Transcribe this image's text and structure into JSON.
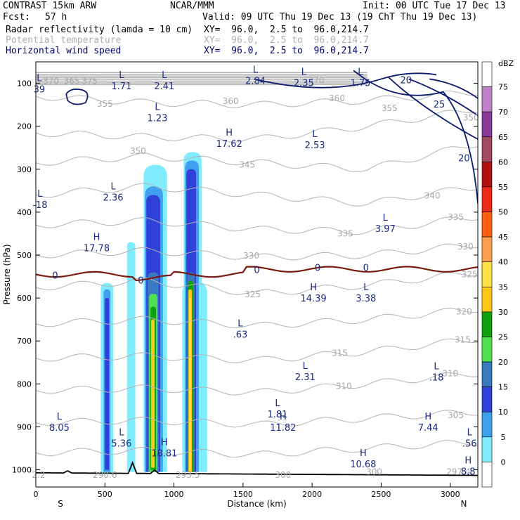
{
  "header": {
    "model": "CONTRAST 15km ARW",
    "center": "NCAR/MMM",
    "init": "Init: 00 UTC Tue 17 Dec 13",
    "fcst_label": "Fcst:",
    "fcst_value": "57 h",
    "valid": "Valid: 09 UTC Thu 19 Dec 13 (19 ChT Thu 19 Dec 13)",
    "fields": [
      {
        "name": "Radar reflectivity (lamda = 10 cm)",
        "xy": "XY=  96.0,  2.5 to  96.0,214.7"
      },
      {
        "name": "Potential temperature",
        "xy": "XY=  96.0,  2.5 to  96.0,214.7"
      },
      {
        "name": "Horizontal wind speed",
        "xy": "XY=  96.0,  2.5 to  96.0,214.7"
      }
    ]
  },
  "colors": {
    "wind": "#0c1a6e",
    "theta": "#b4b4b4",
    "freezing": "#7a1a10",
    "terrain": "#000000"
  },
  "chart_data": {
    "type": "cross-section",
    "xlabel": "Distance (km)",
    "ylabel": "Pressure (hPa)",
    "x_ticks": [
      0,
      500,
      1000,
      1500,
      2000,
      2500,
      3000
    ],
    "x_lim": [
      0,
      3200
    ],
    "y_ticks": [
      100,
      200,
      300,
      400,
      500,
      600,
      700,
      800,
      900,
      1000
    ],
    "y_lim": [
      50,
      1040
    ],
    "left_end": "S",
    "right_end": "N",
    "colorbar": {
      "title": "dBZ",
      "levels": [
        75,
        70,
        65,
        60,
        55,
        50,
        45,
        40,
        35,
        30,
        25,
        20,
        15,
        10,
        5,
        0
      ],
      "colors": [
        "#ffffff",
        "#c080c8",
        "#8a3a9a",
        "#a04a60",
        "#b01010",
        "#ef2a1a",
        "#ff6010",
        "#ffa050",
        "#ffe040",
        "#ffc818",
        "#10a010",
        "#50e050",
        "#3a78c0",
        "#3040d8",
        "#40a0f0",
        "#80ecff",
        "#ffffff"
      ]
    },
    "theta_labels": [
      {
        "text": "370",
        "x": 110,
        "p": 95
      },
      {
        "text": "365",
        "x": 260,
        "p": 95
      },
      {
        "text": "375",
        "x": 390,
        "p": 95
      },
      {
        "text": "370",
        "x": 2030,
        "p": 93
      },
      {
        "text": "355",
        "x": 500,
        "p": 148
      },
      {
        "text": "360",
        "x": 1410,
        "p": 142
      },
      {
        "text": "360",
        "x": 2180,
        "p": 135
      },
      {
        "text": "355",
        "x": 2560,
        "p": 158
      },
      {
        "text": "350",
        "x": 3150,
        "p": 180
      },
      {
        "text": "350",
        "x": 740,
        "p": 258
      },
      {
        "text": "345",
        "x": 1530,
        "p": 290
      },
      {
        "text": "340",
        "x": 2870,
        "p": 362
      },
      {
        "text": "335",
        "x": 3040,
        "p": 412
      },
      {
        "text": "335",
        "x": 2240,
        "p": 450
      },
      {
        "text": "330",
        "x": 1560,
        "p": 502
      },
      {
        "text": "330",
        "x": 3110,
        "p": 480
      },
      {
        "text": "325",
        "x": 1570,
        "p": 592
      },
      {
        "text": "325",
        "x": 3140,
        "p": 545
      },
      {
        "text": "320",
        "x": 3100,
        "p": 632
      },
      {
        "text": "315",
        "x": 2200,
        "p": 728
      },
      {
        "text": "315",
        "x": 3090,
        "p": 697
      },
      {
        "text": "310",
        "x": 2230,
        "p": 805
      },
      {
        "text": "310",
        "x": 3000,
        "p": 776
      },
      {
        "text": "305",
        "x": 3040,
        "p": 873
      },
      {
        "text": "300",
        "x": 1790,
        "p": 1012
      },
      {
        "text": "300",
        "x": 2450,
        "p": 1005
      },
      {
        "text": "290.6",
        "x": 500,
        "p": 1012
      },
      {
        "text": "293.5",
        "x": 1100,
        "p": 1012
      },
      {
        "text": "297.4",
        "x": 3060,
        "p": 1005
      },
      {
        "text": "2.2",
        "x": 20,
        "p": 1012
      }
    ],
    "wind_labels": [
      {
        "text": "20",
        "x": 2680,
        "p": 93
      },
      {
        "text": "25",
        "x": 2920,
        "p": 150
      },
      {
        "text": "20",
        "x": 3100,
        "p": 275
      }
    ],
    "extrema": [
      {
        "kind": "L",
        "value": "1.71",
        "x": 620,
        "p": 88
      },
      {
        "kind": "L",
        "value": "2.41",
        "x": 930,
        "p": 88
      },
      {
        "kind": "L",
        "value": "2.84",
        "x": 1590,
        "p": 75
      },
      {
        "kind": "L",
        "value": "2.35",
        "x": 1940,
        "p": 80
      },
      {
        "kind": "L",
        "value": "1.75",
        "x": 2350,
        "p": 80
      },
      {
        "kind": "L",
        "value": "39",
        "x": 25,
        "p": 95
      },
      {
        "kind": "L",
        "value": "1.23",
        "x": 880,
        "p": 162
      },
      {
        "kind": "H",
        "value": "17.62",
        "x": 1400,
        "p": 222
      },
      {
        "kind": "L",
        "value": "2.53",
        "x": 2020,
        "p": 225
      },
      {
        "kind": "L",
        "value": "2.36",
        "x": 560,
        "p": 347
      },
      {
        "kind": "L",
        "value": "-18",
        "x": 30,
        "p": 364
      },
      {
        "kind": "L",
        "value": "3.97",
        "x": 2530,
        "p": 420
      },
      {
        "kind": "H",
        "value": "17.78",
        "x": 440,
        "p": 465
      },
      {
        "kind": "H",
        "value": "14.39",
        "x": 2010,
        "p": 582
      },
      {
        "kind": "L",
        "value": "3.38",
        "x": 2390,
        "p": 582
      },
      {
        "kind": "L",
        "value": ".63",
        "x": 1480,
        "p": 666
      },
      {
        "kind": "L",
        "value": "2.31",
        "x": 1950,
        "p": 765
      },
      {
        "kind": "L",
        "value": ".18",
        "x": 2900,
        "p": 766
      },
      {
        "kind": "L",
        "value": "1.81",
        "x": 1750,
        "p": 852
      },
      {
        "kind": "L",
        "value": "8.05",
        "x": 170,
        "p": 883
      },
      {
        "kind": "H",
        "value": "11.82",
        "x": 1790,
        "p": 883
      },
      {
        "kind": "H",
        "value": "7.44",
        "x": 2840,
        "p": 883
      },
      {
        "kind": "L",
        "value": "5.36",
        "x": 620,
        "p": 920
      },
      {
        "kind": "H",
        "value": "18.81",
        "x": 930,
        "p": 943
      },
      {
        "kind": "L",
        "value": ".56",
        "x": 3140,
        "p": 920
      },
      {
        "kind": "H",
        "value": "10.68",
        "x": 2370,
        "p": 968
      },
      {
        "kind": "H",
        "value": "8.8",
        "x": 3130,
        "p": 985
      }
    ],
    "freezing_label": "0"
  }
}
